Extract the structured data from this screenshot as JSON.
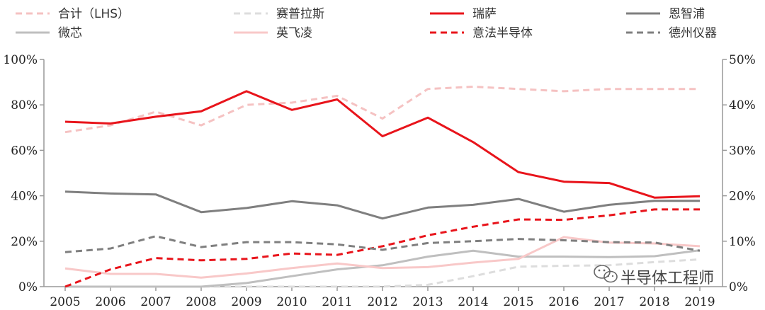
{
  "chart_data": {
    "type": "line",
    "x": [
      "2005",
      "2006",
      "2007",
      "2008",
      "2009",
      "2010",
      "2011",
      "2012",
      "2013",
      "2014",
      "2015",
      "2016",
      "2017",
      "2018",
      "2019"
    ],
    "y_left": {
      "min": 0,
      "max": 100,
      "ticks": [
        "0%",
        "20%",
        "40%",
        "60%",
        "80%",
        "100%"
      ]
    },
    "y_right": {
      "min": 0,
      "max": 50,
      "ticks": [
        "0%",
        "10%",
        "20%",
        "30%",
        "40%",
        "50%"
      ]
    },
    "grid": false,
    "legend_position": "top",
    "series": [
      {
        "name": "合计（LHS）",
        "axis": "left",
        "color": "#f5c2c2",
        "dash": "dashed",
        "width": 3,
        "values": [
          68,
          71,
          77,
          71,
          80,
          81,
          84,
          74,
          87,
          88,
          87,
          86,
          87,
          87,
          87
        ]
      },
      {
        "name": "赛普拉斯",
        "axis": "right",
        "color": "#dddddd",
        "dash": "dashed",
        "width": 3,
        "values": [
          0,
          0,
          0,
          0,
          0,
          0,
          0,
          0,
          0.4,
          2.3,
          4.4,
          4.6,
          4.7,
          5.4,
          6.0
        ]
      },
      {
        "name": "瑞萨",
        "axis": "right",
        "color": "#e8141b",
        "dash": "solid",
        "width": 3,
        "values": [
          36.3,
          35.9,
          37.4,
          38.6,
          43.0,
          38.9,
          41.2,
          33.1,
          37.2,
          31.8,
          25.2,
          23.1,
          22.8,
          19.6,
          19.9
        ]
      },
      {
        "name": "恩智浦",
        "axis": "right",
        "color": "#7f7f7f",
        "dash": "solid",
        "width": 3,
        "values": [
          20.9,
          20.5,
          20.3,
          16.4,
          17.3,
          18.8,
          17.9,
          15.0,
          17.4,
          18.0,
          19.3,
          16.5,
          18.0,
          18.9,
          18.9
        ]
      },
      {
        "name": "微芯",
        "axis": "right",
        "color": "#bfbfbf",
        "dash": "solid",
        "width": 3,
        "values": [
          0,
          0,
          0,
          0,
          0.8,
          2.3,
          3.8,
          4.7,
          6.6,
          7.9,
          6.6,
          6.6,
          6.5,
          6.7,
          8.0
        ]
      },
      {
        "name": "英飞凌",
        "axis": "right",
        "color": "#f8c8c8",
        "dash": "solid",
        "width": 3,
        "values": [
          4.0,
          2.8,
          2.8,
          2.0,
          2.9,
          4.1,
          5.1,
          4.1,
          4.3,
          5.3,
          6.1,
          10.9,
          9.7,
          9.5,
          8.9
        ]
      },
      {
        "name": "意法半导体",
        "axis": "right",
        "color": "#e8141b",
        "dash": "dashed",
        "width": 3,
        "values": [
          0,
          3.8,
          6.3,
          5.8,
          6.1,
          7.3,
          7.0,
          8.9,
          11.3,
          13.2,
          14.8,
          14.7,
          15.7,
          17.0,
          17.0
        ]
      },
      {
        "name": "德州仪器",
        "axis": "right",
        "color": "#7f7f7f",
        "dash": "dashed",
        "width": 3,
        "values": [
          7.6,
          8.4,
          11.1,
          8.7,
          9.8,
          9.8,
          9.3,
          8.1,
          9.6,
          10.0,
          10.5,
          10.2,
          9.8,
          9.7,
          7.9
        ]
      }
    ]
  },
  "watermark": {
    "icon": "wechat-icon",
    "text": "半导体工程师"
  }
}
